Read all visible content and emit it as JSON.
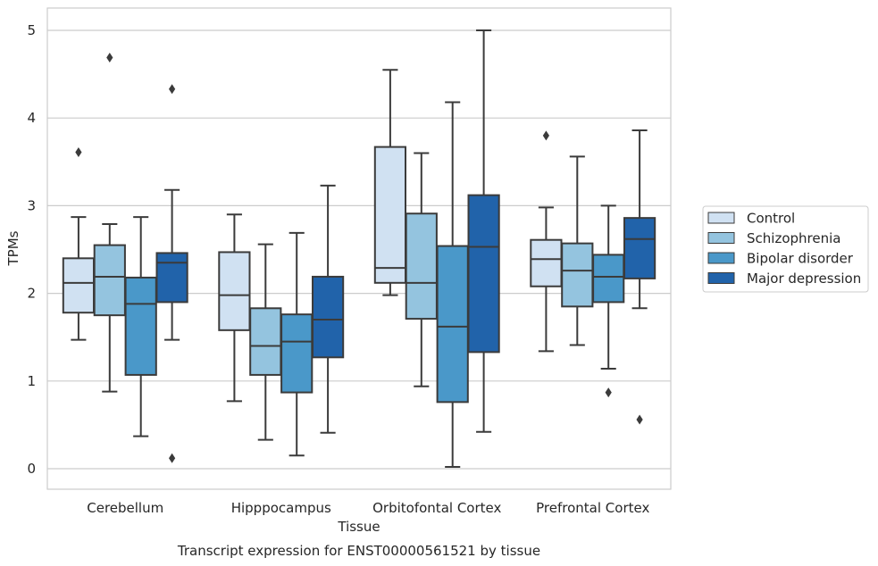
{
  "chart_data": {
    "type": "boxplot",
    "title": "",
    "caption": "Transcript expression for ENST00000561521 by tissue",
    "xlabel": "Tissue",
    "ylabel": "TPMs",
    "ylim": [
      -0.23,
      5.26
    ],
    "yticks": [
      0,
      1,
      2,
      3,
      4,
      5
    ],
    "grid": "horizontal",
    "legend_position": "right",
    "categories": [
      "Cerebellum",
      "Hipppocampus",
      "Orbitofontal Cortex",
      "Prefrontal Cortex"
    ],
    "series": [
      {
        "name": "Control",
        "color": "#d0e1f2",
        "boxes": [
          {
            "whislo": 1.47,
            "q1": 1.78,
            "med": 2.12,
            "q3": 2.4,
            "whishi": 2.87,
            "fliers": [
              3.61
            ]
          },
          {
            "whislo": 0.77,
            "q1": 1.58,
            "med": 1.98,
            "q3": 2.47,
            "whishi": 2.9,
            "fliers": []
          },
          {
            "whislo": 1.98,
            "q1": 2.12,
            "med": 2.29,
            "q3": 3.67,
            "whishi": 4.55,
            "fliers": []
          },
          {
            "whislo": 1.34,
            "q1": 2.08,
            "med": 2.39,
            "q3": 2.61,
            "whishi": 2.98,
            "fliers": [
              3.8
            ]
          }
        ]
      },
      {
        "name": "Schizophrenia",
        "color": "#94c4df",
        "boxes": [
          {
            "whislo": 0.88,
            "q1": 1.75,
            "med": 2.19,
            "q3": 2.55,
            "whishi": 2.79,
            "fliers": [
              4.69
            ]
          },
          {
            "whislo": 0.33,
            "q1": 1.07,
            "med": 1.4,
            "q3": 1.83,
            "whishi": 2.56,
            "fliers": []
          },
          {
            "whislo": 0.94,
            "q1": 1.71,
            "med": 2.12,
            "q3": 2.91,
            "whishi": 3.6,
            "fliers": []
          },
          {
            "whislo": 1.41,
            "q1": 1.85,
            "med": 2.26,
            "q3": 2.57,
            "whishi": 3.56,
            "fliers": []
          }
        ]
      },
      {
        "name": "Bipolar disorder",
        "color": "#4a98c9",
        "boxes": [
          {
            "whislo": 0.37,
            "q1": 1.07,
            "med": 1.88,
            "q3": 2.18,
            "whishi": 2.87,
            "fliers": []
          },
          {
            "whislo": 0.15,
            "q1": 0.87,
            "med": 1.45,
            "q3": 1.76,
            "whishi": 2.69,
            "fliers": []
          },
          {
            "whislo": 0.02,
            "q1": 0.76,
            "med": 1.62,
            "q3": 2.54,
            "whishi": 4.18,
            "fliers": []
          },
          {
            "whislo": 1.14,
            "q1": 1.9,
            "med": 2.19,
            "q3": 2.44,
            "whishi": 3.0,
            "fliers": [
              0.87
            ]
          }
        ]
      },
      {
        "name": "Major depression",
        "color": "#2163aa",
        "boxes": [
          {
            "whislo": 1.47,
            "q1": 1.9,
            "med": 2.35,
            "q3": 2.46,
            "whishi": 3.18,
            "fliers": [
              4.33,
              0.12
            ]
          },
          {
            "whislo": 0.41,
            "q1": 1.27,
            "med": 1.7,
            "q3": 2.19,
            "whishi": 3.23,
            "fliers": []
          },
          {
            "whislo": 0.42,
            "q1": 1.33,
            "med": 2.53,
            "q3": 3.12,
            "whishi": 5.0,
            "fliers": []
          },
          {
            "whislo": 1.83,
            "q1": 2.17,
            "med": 2.62,
            "q3": 2.86,
            "whishi": 3.86,
            "fliers": [
              0.56
            ]
          }
        ]
      }
    ]
  }
}
